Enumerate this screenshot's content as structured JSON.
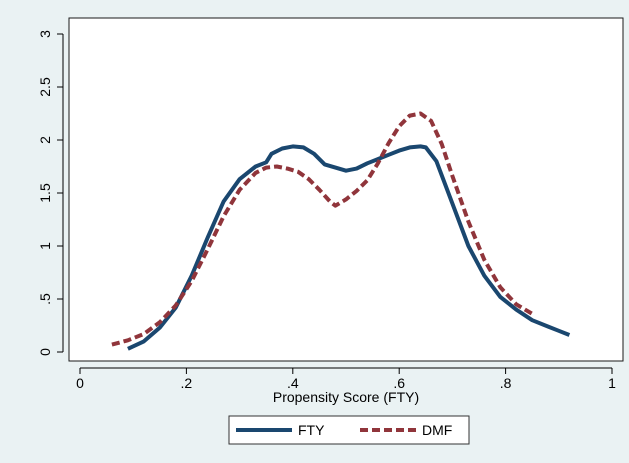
{
  "chart_data": {
    "type": "line",
    "title": "",
    "xlabel": "Propensity Score (FTY)",
    "ylabel": "",
    "xlim": [
      0,
      1
    ],
    "ylim": [
      0,
      3
    ],
    "xticks": [
      {
        "value": 0,
        "label": "0"
      },
      {
        "value": 0.2,
        "label": ".2"
      },
      {
        "value": 0.4,
        "label": ".4"
      },
      {
        "value": 0.6,
        "label": ".6"
      },
      {
        "value": 0.8,
        "label": ".8"
      },
      {
        "value": 1,
        "label": "1"
      }
    ],
    "yticks": [
      {
        "value": 0,
        "label": "0"
      },
      {
        "value": 0.5,
        "label": ".5"
      },
      {
        "value": 1,
        "label": "1"
      },
      {
        "value": 1.5,
        "label": "1.5"
      },
      {
        "value": 2,
        "label": "2"
      },
      {
        "value": 2.5,
        "label": "2.5"
      },
      {
        "value": 3,
        "label": "3"
      }
    ],
    "grid": false,
    "legend_position": "bottom",
    "series": [
      {
        "name": "FTY",
        "color": "#1a476f",
        "style": "solid",
        "x": [
          0.09,
          0.12,
          0.15,
          0.18,
          0.21,
          0.24,
          0.27,
          0.3,
          0.33,
          0.35,
          0.36,
          0.38,
          0.4,
          0.42,
          0.44,
          0.46,
          0.48,
          0.5,
          0.52,
          0.54,
          0.56,
          0.58,
          0.6,
          0.62,
          0.64,
          0.65,
          0.67,
          0.7,
          0.73,
          0.76,
          0.79,
          0.82,
          0.85,
          0.88,
          0.9,
          0.92
        ],
        "y": [
          0.03,
          0.1,
          0.23,
          0.42,
          0.72,
          1.08,
          1.42,
          1.63,
          1.75,
          1.79,
          1.87,
          1.92,
          1.94,
          1.93,
          1.87,
          1.77,
          1.74,
          1.71,
          1.73,
          1.78,
          1.82,
          1.86,
          1.9,
          1.93,
          1.94,
          1.93,
          1.8,
          1.4,
          1.0,
          0.72,
          0.52,
          0.4,
          0.3,
          0.24,
          0.2,
          0.16
        ]
      },
      {
        "name": "DMF",
        "color": "#90353b",
        "style": "dashed",
        "x": [
          0.06,
          0.09,
          0.12,
          0.15,
          0.18,
          0.21,
          0.24,
          0.27,
          0.3,
          0.33,
          0.35,
          0.37,
          0.39,
          0.41,
          0.43,
          0.45,
          0.47,
          0.48,
          0.5,
          0.52,
          0.54,
          0.56,
          0.58,
          0.6,
          0.62,
          0.64,
          0.66,
          0.68,
          0.7,
          0.73,
          0.76,
          0.79,
          0.82,
          0.85
        ],
        "y": [
          0.07,
          0.11,
          0.17,
          0.28,
          0.44,
          0.67,
          0.97,
          1.28,
          1.53,
          1.69,
          1.74,
          1.75,
          1.73,
          1.7,
          1.63,
          1.53,
          1.42,
          1.38,
          1.44,
          1.52,
          1.62,
          1.78,
          1.97,
          2.13,
          2.23,
          2.25,
          2.18,
          1.96,
          1.66,
          1.23,
          0.87,
          0.61,
          0.45,
          0.36
        ]
      }
    ]
  }
}
